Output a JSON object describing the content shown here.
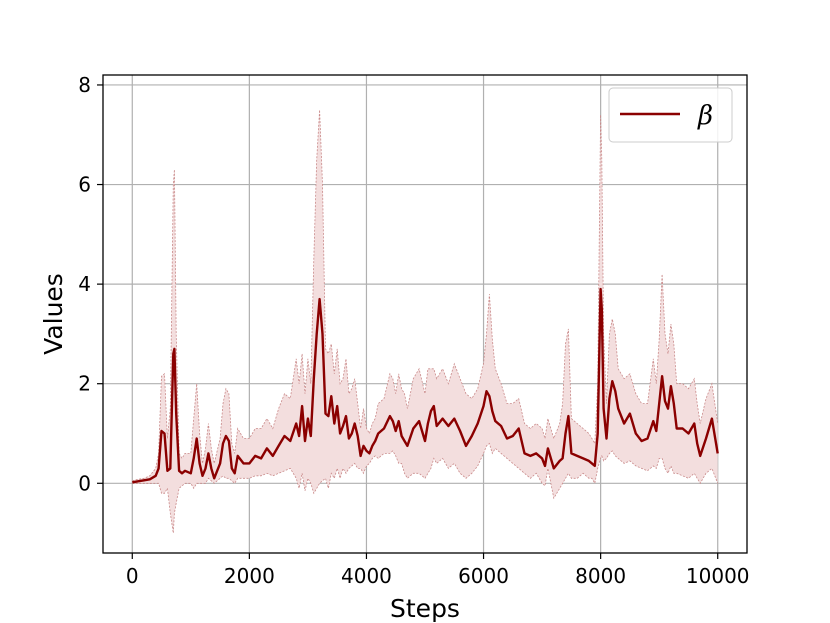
{
  "chart_data": {
    "type": "line",
    "title": "",
    "xlabel": "Steps",
    "ylabel": "Values",
    "xlim": [
      -500,
      10500
    ],
    "ylim": [
      -1.4,
      8.2
    ],
    "xticks": [
      "0",
      "2000",
      "4000",
      "6000",
      "8000",
      "10000"
    ],
    "yticks": [
      "0",
      "2",
      "4",
      "6",
      "8"
    ],
    "grid": true,
    "legend_position": "top-right",
    "colors": {
      "line": "#8b0000",
      "band_fill": "#f3dede",
      "band_edge": "#c98a8a",
      "grid": "#b0b0b0"
    },
    "series": [
      {
        "name": "β",
        "x": [
          0,
          100,
          200,
          300,
          400,
          450,
          500,
          550,
          600,
          650,
          700,
          720,
          750,
          800,
          850,
          900,
          1000,
          1050,
          1100,
          1150,
          1200,
          1250,
          1300,
          1350,
          1400,
          1500,
          1550,
          1600,
          1650,
          1700,
          1750,
          1800,
          1900,
          2000,
          2100,
          2200,
          2300,
          2400,
          2500,
          2600,
          2700,
          2800,
          2850,
          2900,
          2950,
          3000,
          3050,
          3100,
          3150,
          3200,
          3250,
          3300,
          3350,
          3400,
          3450,
          3500,
          3550,
          3600,
          3650,
          3700,
          3750,
          3800,
          3850,
          3900,
          3950,
          4000,
          4050,
          4100,
          4150,
          4200,
          4300,
          4400,
          4450,
          4500,
          4550,
          4600,
          4650,
          4700,
          4800,
          4900,
          5000,
          5050,
          5100,
          5150,
          5200,
          5300,
          5400,
          5500,
          5600,
          5700,
          5800,
          5900,
          6000,
          6050,
          6100,
          6150,
          6200,
          6300,
          6400,
          6500,
          6600,
          6700,
          6800,
          6900,
          7000,
          7050,
          7100,
          7200,
          7300,
          7350,
          7400,
          7450,
          7500,
          7600,
          7700,
          7800,
          7850,
          7900,
          7950,
          8000,
          8020,
          8050,
          8100,
          8150,
          8200,
          8250,
          8300,
          8400,
          8500,
          8600,
          8700,
          8800,
          8900,
          8950,
          9000,
          9050,
          9100,
          9150,
          9200,
          9250,
          9300,
          9400,
          9500,
          9600,
          9650,
          9700,
          9800,
          9900,
          10000
        ],
        "values": [
          0.02,
          0.04,
          0.06,
          0.08,
          0.15,
          0.3,
          1.05,
          1.0,
          0.25,
          0.3,
          2.6,
          2.7,
          1.4,
          0.25,
          0.2,
          0.25,
          0.2,
          0.5,
          0.9,
          0.4,
          0.15,
          0.3,
          0.6,
          0.3,
          0.1,
          0.4,
          0.8,
          0.95,
          0.85,
          0.3,
          0.2,
          0.55,
          0.4,
          0.4,
          0.55,
          0.5,
          0.7,
          0.55,
          0.75,
          0.95,
          0.85,
          1.2,
          0.95,
          1.55,
          0.85,
          1.3,
          0.95,
          2.1,
          3.0,
          3.7,
          3.0,
          1.4,
          1.35,
          1.75,
          1.2,
          1.55,
          1.0,
          1.15,
          1.35,
          0.9,
          1.0,
          1.2,
          0.95,
          0.55,
          0.75,
          0.65,
          0.6,
          0.75,
          0.85,
          1.0,
          1.1,
          1.35,
          1.25,
          1.05,
          1.25,
          0.95,
          0.85,
          0.75,
          1.1,
          1.25,
          0.85,
          1.2,
          1.45,
          1.55,
          1.15,
          1.3,
          1.15,
          1.3,
          1.05,
          0.75,
          0.95,
          1.2,
          1.55,
          1.85,
          1.75,
          1.45,
          1.25,
          1.15,
          0.9,
          0.95,
          1.1,
          0.6,
          0.55,
          0.6,
          0.5,
          0.35,
          0.7,
          0.3,
          0.45,
          0.5,
          1.0,
          1.35,
          0.6,
          0.55,
          0.5,
          0.45,
          0.4,
          0.35,
          1.0,
          3.9,
          3.5,
          1.5,
          0.9,
          1.7,
          2.05,
          1.85,
          1.5,
          1.2,
          1.4,
          1.0,
          0.85,
          0.9,
          1.25,
          1.05,
          1.6,
          2.15,
          1.65,
          1.5,
          1.95,
          1.6,
          1.1,
          1.1,
          1.0,
          1.2,
          0.8,
          0.55,
          0.9,
          1.3,
          0.6
        ],
        "lower": [
          0.0,
          0.0,
          0.0,
          0.0,
          0.0,
          0.0,
          -0.2,
          -0.2,
          -0.1,
          -0.6,
          -1.0,
          -0.6,
          -0.4,
          -0.1,
          -0.05,
          0.0,
          0.0,
          -0.1,
          0.0,
          0.0,
          0.0,
          0.0,
          0.1,
          0.05,
          0.0,
          0.1,
          0.15,
          0.1,
          0.1,
          0.05,
          0.0,
          0.1,
          0.1,
          0.1,
          0.15,
          0.15,
          0.2,
          0.15,
          0.2,
          0.25,
          0.3,
          0.1,
          -0.1,
          0.2,
          -0.15,
          0.1,
          0.0,
          -0.2,
          -0.1,
          0.0,
          0.05,
          0.1,
          -0.1,
          0.2,
          0.1,
          0.3,
          0.1,
          0.3,
          0.2,
          0.3,
          0.35,
          0.4,
          0.3,
          0.3,
          0.2,
          0.35,
          0.4,
          0.5,
          0.55,
          0.5,
          0.6,
          0.6,
          0.65,
          0.55,
          0.4,
          0.4,
          0.2,
          0.1,
          0.2,
          0.2,
          0.1,
          0.2,
          0.3,
          0.5,
          0.4,
          0.5,
          0.3,
          0.4,
          0.2,
          0.1,
          0.2,
          0.35,
          0.6,
          0.75,
          0.8,
          0.6,
          0.7,
          0.6,
          0.5,
          0.4,
          0.3,
          0.2,
          0.1,
          0.2,
          0.0,
          -0.05,
          0.3,
          -0.3,
          -0.1,
          0.0,
          0.1,
          0.2,
          0.1,
          0.1,
          0.2,
          0.1,
          0.1,
          0.0,
          0.3,
          0.5,
          0.55,
          0.45,
          0.5,
          0.6,
          0.65,
          0.55,
          0.5,
          0.4,
          0.45,
          0.35,
          0.3,
          0.25,
          0.35,
          0.3,
          0.5,
          0.5,
          0.3,
          0.2,
          0.35,
          0.2,
          0.2,
          0.15,
          0.1,
          0.2,
          0.1,
          0.0,
          0.2,
          0.3,
          0.0
        ],
        "upper": [
          0.05,
          0.08,
          0.1,
          0.15,
          0.3,
          0.6,
          2.15,
          2.2,
          0.9,
          1.5,
          6.0,
          6.3,
          3.0,
          0.6,
          0.5,
          0.6,
          0.6,
          1.3,
          2.0,
          1.0,
          0.4,
          0.7,
          1.2,
          0.7,
          0.4,
          0.9,
          1.6,
          1.9,
          1.8,
          0.8,
          0.6,
          1.1,
          0.9,
          0.9,
          1.1,
          1.1,
          1.3,
          1.1,
          1.5,
          1.8,
          1.7,
          2.5,
          2.0,
          2.6,
          1.8,
          2.5,
          2.0,
          4.5,
          6.5,
          7.5,
          6.0,
          2.7,
          2.6,
          2.8,
          2.2,
          2.7,
          2.0,
          2.1,
          2.5,
          1.8,
          1.9,
          2.1,
          1.6,
          1.1,
          1.5,
          1.1,
          1.0,
          1.2,
          1.3,
          1.6,
          1.7,
          2.2,
          2.1,
          1.8,
          2.2,
          1.9,
          1.8,
          1.5,
          2.1,
          2.3,
          1.8,
          2.3,
          2.3,
          2.3,
          2.1,
          2.3,
          2.0,
          2.4,
          2.1,
          1.8,
          1.7,
          1.9,
          2.4,
          3.0,
          3.8,
          2.9,
          2.3,
          2.0,
          1.6,
          1.6,
          1.7,
          1.2,
          1.1,
          1.2,
          1.1,
          0.9,
          1.3,
          0.9,
          1.2,
          1.6,
          2.8,
          3.1,
          1.3,
          1.2,
          1.1,
          1.0,
          0.9,
          0.8,
          2.0,
          7.4,
          6.5,
          3.0,
          1.6,
          3.0,
          3.3,
          3.0,
          2.3,
          2.1,
          2.2,
          1.8,
          1.6,
          1.6,
          2.5,
          2.0,
          2.9,
          4.2,
          3.0,
          2.6,
          3.2,
          2.8,
          2.0,
          2.0,
          1.9,
          2.1,
          1.6,
          1.2,
          1.7,
          2.0,
          1.2
        ]
      }
    ]
  }
}
